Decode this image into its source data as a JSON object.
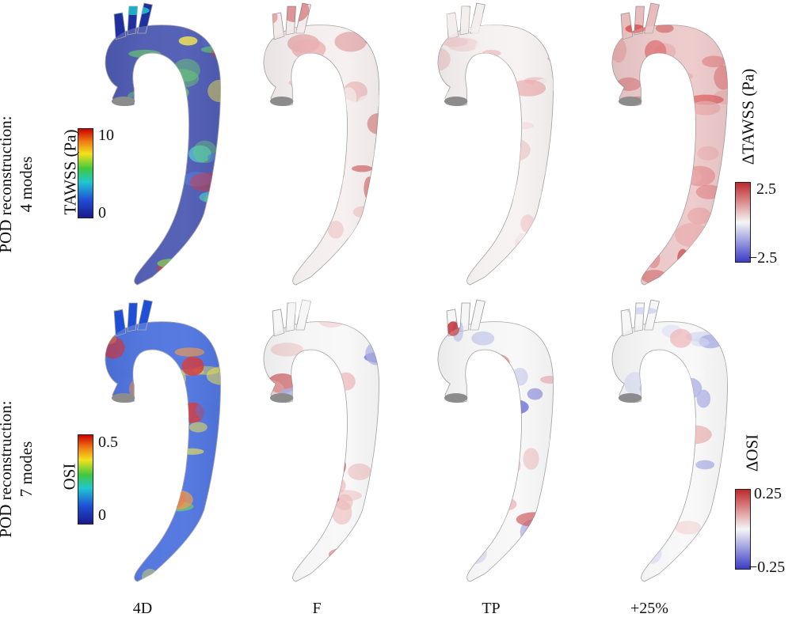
{
  "figure": {
    "row_labels": [
      {
        "line1": "POD reconstruction:",
        "line2": "4 modes"
      },
      {
        "line1": "POD reconstruction:",
        "line2": "7 modes"
      }
    ],
    "column_labels": [
      "4D",
      "F",
      "TP",
      "+25%"
    ],
    "rows": [
      {
        "quantity": "TAWSS",
        "colorbar": {
          "title": "TAWSS (Pa)",
          "max_label": "10",
          "min_label": "0",
          "colormap": "jet"
        },
        "diff_colorbar": {
          "title": "ΔTAWSS (Pa)",
          "max_label": "2.5",
          "min_label": "−2.5",
          "colormap": "blue-white-red"
        },
        "panels": [
          "4D TAWSS map",
          "F ΔTAWSS map",
          "TP ΔTAWSS map",
          "+25% ΔTAWSS map"
        ]
      },
      {
        "quantity": "OSI",
        "colorbar": {
          "title": "OSI",
          "max_label": "0.5",
          "min_label": "0",
          "colormap": "jet"
        },
        "diff_colorbar": {
          "title": "ΔOSI",
          "max_label": "0.25",
          "min_label": "−0.25",
          "colormap": "blue-white-red"
        },
        "panels": [
          "4D OSI map",
          "F ΔOSI map",
          "TP ΔOSI map",
          "+25% ΔOSI map"
        ]
      }
    ],
    "colors": {
      "jet_low": "#1a1a8c",
      "jet_high": "#cc0000",
      "diff_neg": "#3b3bc8",
      "diff_pos": "#c0282b",
      "neutral": "#f4f4f4"
    }
  }
}
